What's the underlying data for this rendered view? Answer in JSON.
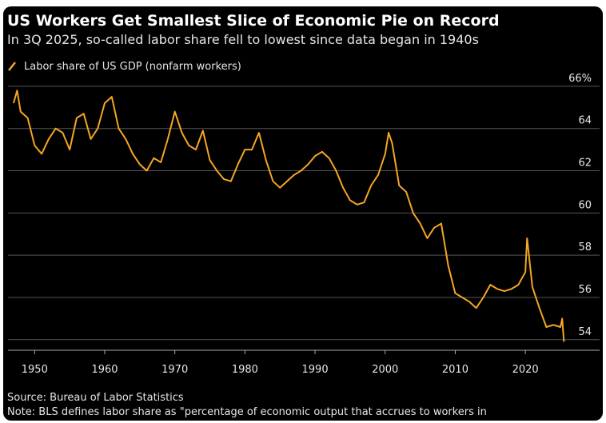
{
  "chart_data": {
    "type": "line",
    "title": "US Workers Get Smallest Slice of Economic Pie on Record",
    "subtitle": "In 3Q 2025, so-called labor share fell to lowest since data began in 1940s",
    "source": "Source: Bureau of Labor Statistics",
    "note": "Note: BLS defines labor share as \"percentage of economic output that accrues to workers in",
    "x": [
      1947,
      1947.5,
      1948,
      1949,
      1950,
      1951,
      1952,
      1953,
      1954,
      1955,
      1956,
      1957,
      1958,
      1959,
      1960,
      1961,
      1962,
      1963,
      1964,
      1965,
      1966,
      1967,
      1968,
      1969,
      1970,
      1971,
      1972,
      1973,
      1974,
      1975,
      1976,
      1977,
      1978,
      1979,
      1980,
      1981,
      1982,
      1983,
      1984,
      1985,
      1986,
      1987,
      1988,
      1989,
      1990,
      1991,
      1992,
      1993,
      1994,
      1995,
      1996,
      1997,
      1998,
      1999,
      2000,
      2000.5,
      2001,
      2002,
      2003,
      2004,
      2005,
      2006,
      2007,
      2008,
      2009,
      2010,
      2011,
      2012,
      2013,
      2014,
      2015,
      2016,
      2017,
      2018,
      2019,
      2020,
      2020.25,
      2021,
      2022,
      2023,
      2024,
      2025,
      2025.25,
      2025.5
    ],
    "series": [
      {
        "name": "Labor share of US GDP (nonfarm workers)",
        "color": "#f5a623",
        "values": [
          65.2,
          65.8,
          64.8,
          64.5,
          63.2,
          62.8,
          63.5,
          64.0,
          63.8,
          63.0,
          64.5,
          64.7,
          63.5,
          64.0,
          65.2,
          65.5,
          64.0,
          63.5,
          62.8,
          62.3,
          62.0,
          62.6,
          62.4,
          63.5,
          64.8,
          63.8,
          63.2,
          63.0,
          63.9,
          62.5,
          62.0,
          61.6,
          61.5,
          62.3,
          63.0,
          63.0,
          63.8,
          62.5,
          61.5,
          61.2,
          61.5,
          61.8,
          62.0,
          62.3,
          62.7,
          62.9,
          62.6,
          62.0,
          61.2,
          60.6,
          60.4,
          60.5,
          61.3,
          61.8,
          62.8,
          63.8,
          63.3,
          61.3,
          61.0,
          60.0,
          59.5,
          58.8,
          59.3,
          59.5,
          57.5,
          56.2,
          56.0,
          55.8,
          55.5,
          56.0,
          56.6,
          56.4,
          56.3,
          56.4,
          56.6,
          57.2,
          58.8,
          56.5,
          55.5,
          54.6,
          54.7,
          54.6,
          55.0,
          53.9
        ]
      }
    ],
    "xlim": [
      1946.2,
      2026.6
    ],
    "ylim": [
      53.5,
      66.3
    ],
    "xticks": [
      1950,
      1960,
      1970,
      1980,
      1990,
      2000,
      2010,
      2020
    ],
    "yticks": [
      54,
      56,
      58,
      60,
      62,
      {
        "value": 64,
        "label": "64"
      },
      {
        "value": 66,
        "label": "66%"
      }
    ],
    "grid": true
  }
}
